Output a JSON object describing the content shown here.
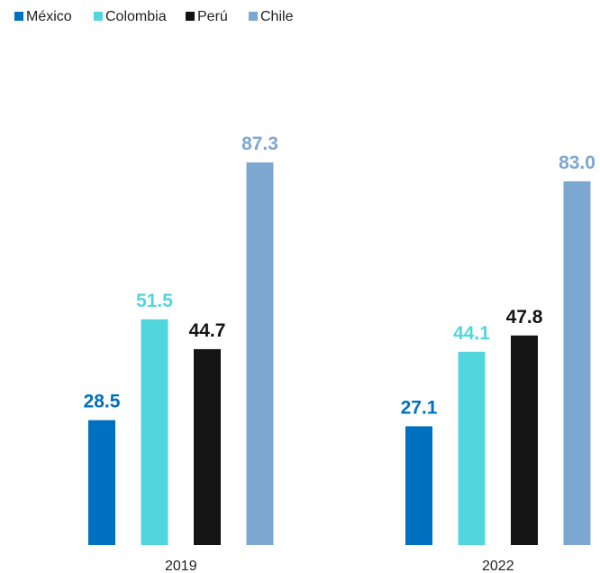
{
  "chart_data": {
    "type": "bar",
    "title": "",
    "xlabel": "",
    "ylabel": "",
    "categories": [
      "2019",
      "2022"
    ],
    "series": [
      {
        "name": "México",
        "values": [
          28.5,
          27.1
        ],
        "labels": [
          "28.5",
          "27.1"
        ],
        "color": "#0070C0"
      },
      {
        "name": "Colombia",
        "values": [
          51.5,
          44.1
        ],
        "labels": [
          "51.5",
          "44.1"
        ],
        "color": "#52D6DE"
      },
      {
        "name": "Perú",
        "values": [
          44.7,
          47.8
        ],
        "labels": [
          "44.7",
          "47.8"
        ],
        "color": "#141414"
      },
      {
        "name": "Chile",
        "values": [
          87.3,
          83.0
        ],
        "labels": [
          "87.3",
          "83.0"
        ],
        "color": "#7BA7D1"
      }
    ],
    "ylim": [
      0,
      100
    ],
    "grid": false,
    "legend": "top-left"
  }
}
